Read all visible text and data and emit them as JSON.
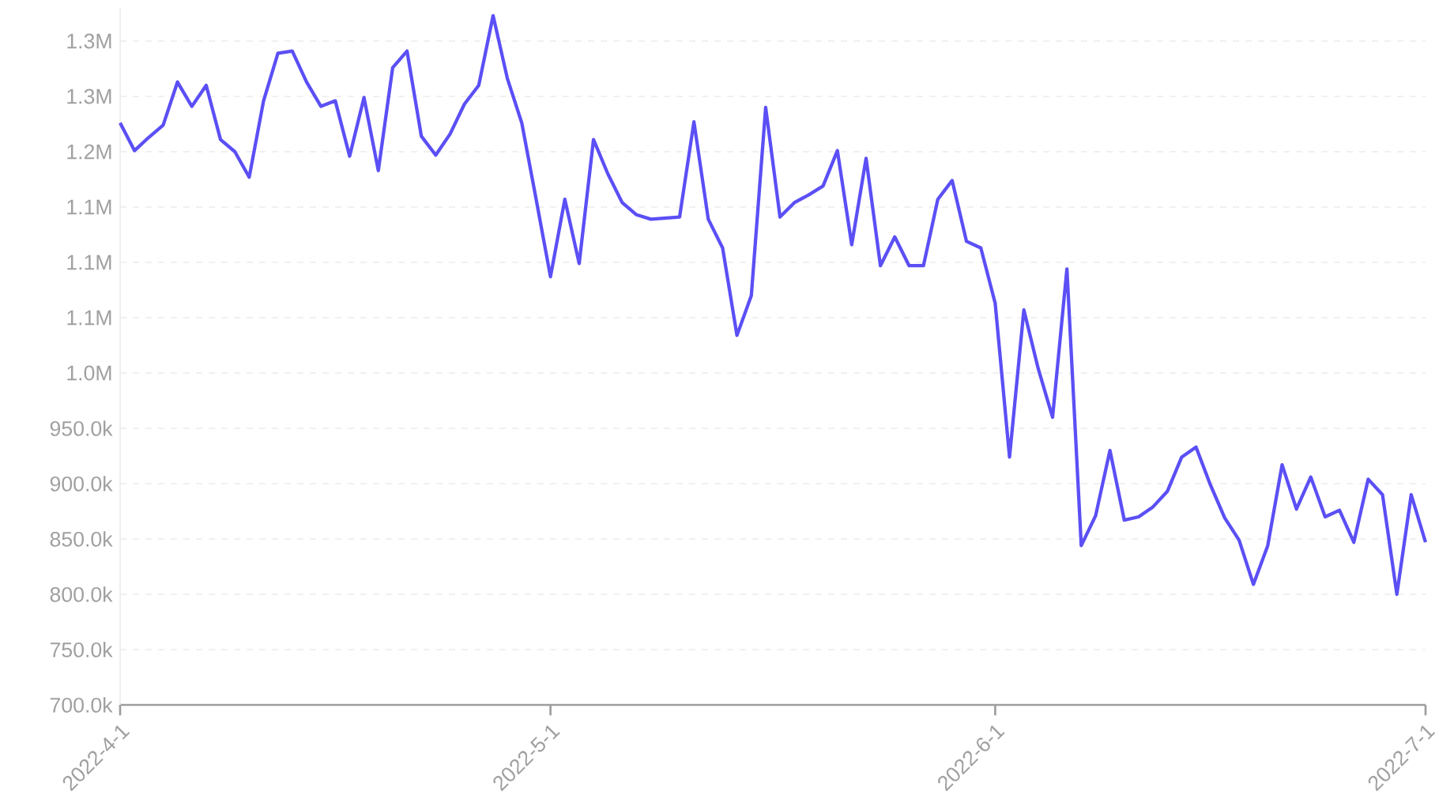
{
  "chart_data": {
    "type": "line",
    "color": "#5b4ff5",
    "x": [
      "2022-04-01",
      "2022-04-02",
      "2022-04-03",
      "2022-04-04",
      "2022-04-05",
      "2022-04-06",
      "2022-04-07",
      "2022-04-08",
      "2022-04-09",
      "2022-04-10",
      "2022-04-11",
      "2022-04-12",
      "2022-04-13",
      "2022-04-14",
      "2022-04-15",
      "2022-04-16",
      "2022-04-17",
      "2022-04-18",
      "2022-04-19",
      "2022-04-20",
      "2022-04-21",
      "2022-04-22",
      "2022-04-23",
      "2022-04-24",
      "2022-04-25",
      "2022-04-26",
      "2022-04-27",
      "2022-04-28",
      "2022-04-29",
      "2022-04-30",
      "2022-05-01",
      "2022-05-02",
      "2022-05-03",
      "2022-05-04",
      "2022-05-05",
      "2022-05-06",
      "2022-05-07",
      "2022-05-08",
      "2022-05-09",
      "2022-05-10",
      "2022-05-11",
      "2022-05-12",
      "2022-05-13",
      "2022-05-14",
      "2022-05-15",
      "2022-05-16",
      "2022-05-17",
      "2022-05-18",
      "2022-05-19",
      "2022-05-20",
      "2022-05-21",
      "2022-05-22",
      "2022-05-23",
      "2022-05-24",
      "2022-05-25",
      "2022-05-26",
      "2022-05-27",
      "2022-05-28",
      "2022-05-29",
      "2022-05-30",
      "2022-05-31",
      "2022-06-01",
      "2022-06-02",
      "2022-06-03",
      "2022-06-04",
      "2022-06-05",
      "2022-06-06",
      "2022-06-07",
      "2022-06-08",
      "2022-06-09",
      "2022-06-10",
      "2022-06-11",
      "2022-06-12",
      "2022-06-13",
      "2022-06-14",
      "2022-06-15",
      "2022-06-16",
      "2022-06-17",
      "2022-06-18",
      "2022-06-19",
      "2022-06-20",
      "2022-06-21",
      "2022-06-22",
      "2022-06-23",
      "2022-06-24",
      "2022-06-25",
      "2022-06-26",
      "2022-06-27",
      "2022-06-28",
      "2022-06-29",
      "2022-06-30",
      "2022-07-01"
    ],
    "values": [
      1226000,
      1201000,
      1213000,
      1224000,
      1263000,
      1241000,
      1260000,
      1211000,
      1200000,
      1177000,
      1246000,
      1289000,
      1291000,
      1263000,
      1241000,
      1246000,
      1196000,
      1249000,
      1183000,
      1276000,
      1291000,
      1214000,
      1197000,
      1216000,
      1243000,
      1260000,
      1323000,
      1266000,
      1226000,
      1157000,
      1087000,
      1157000,
      1099000,
      1211000,
      1180000,
      1154000,
      1143000,
      1139000,
      1140000,
      1141000,
      1227000,
      1139000,
      1113000,
      1034000,
      1070000,
      1240000,
      1141000,
      1154000,
      1161000,
      1169000,
      1201000,
      1116000,
      1194000,
      1097000,
      1123000,
      1097000,
      1097000,
      1157000,
      1174000,
      1119000,
      1113000,
      1063000,
      924000,
      1057000,
      1004000,
      960000,
      1094000,
      844000,
      871000,
      930000,
      867000,
      870000,
      879000,
      893000,
      924000,
      933000,
      899000,
      869000,
      849000,
      809000,
      844000,
      917000,
      877000,
      906000,
      870000,
      876000,
      847000,
      904000,
      890000,
      800000,
      890000,
      847000
    ],
    "xlim": [
      "2022-04-01",
      "2022-07-01"
    ],
    "xticks": [
      {
        "value": "2022-04-01",
        "label": "2022-4-1"
      },
      {
        "value": "2022-05-01",
        "label": "2022-5-1"
      },
      {
        "value": "2022-06-01",
        "label": "2022-6-1"
      },
      {
        "value": "2022-07-01",
        "label": "2022-7-1"
      }
    ],
    "ylim": [
      700000,
      1330000
    ],
    "yticks": [
      {
        "value": 700000,
        "label": "700.0k"
      },
      {
        "value": 750000,
        "label": "750.0k"
      },
      {
        "value": 800000,
        "label": "800.0k"
      },
      {
        "value": 850000,
        "label": "850.0k"
      },
      {
        "value": 900000,
        "label": "900.0k"
      },
      {
        "value": 950000,
        "label": "950.0k"
      },
      {
        "value": 1000000,
        "label": "1.0M"
      },
      {
        "value": 1050000,
        "label": "1.1M"
      },
      {
        "value": 1100000,
        "label": "1.1M"
      },
      {
        "value": 1150000,
        "label": "1.1M"
      },
      {
        "value": 1200000,
        "label": "1.2M"
      },
      {
        "value": 1250000,
        "label": "1.3M"
      },
      {
        "value": 1300000,
        "label": "1.3M"
      }
    ],
    "grid": "y",
    "marker": "none",
    "line_style": "solid"
  }
}
